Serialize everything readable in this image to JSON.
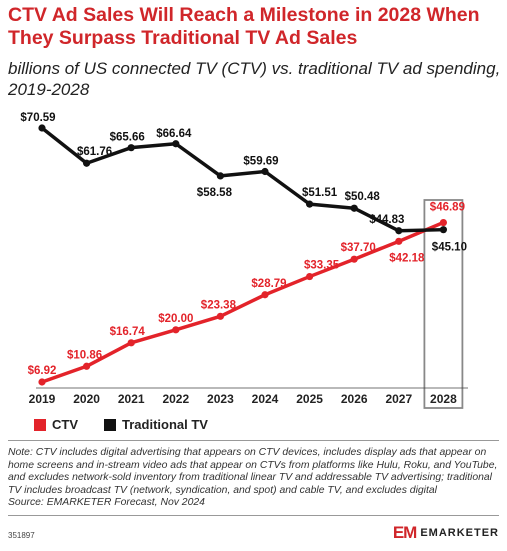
{
  "header": {
    "title": "CTV Ad Sales Will Reach a Milestone in 2028 When They Surpass Traditional TV Ad Sales",
    "subtitle": "billions of US connected TV (CTV) vs. traditional TV ad spending, 2019-2028"
  },
  "chart_data": {
    "type": "line",
    "categories": [
      "2019",
      "2020",
      "2021",
      "2022",
      "2023",
      "2024",
      "2025",
      "2026",
      "2027",
      "2028"
    ],
    "series": [
      {
        "name": "CTV",
        "color": "#e3232a",
        "values": [
          6.92,
          10.86,
          16.74,
          20.0,
          23.38,
          28.79,
          33.35,
          37.7,
          42.18,
          46.89
        ],
        "labels": [
          "$6.92",
          "$10.86",
          "$16.74",
          "$20.00",
          "$23.38",
          "$28.79",
          "$33.35",
          "$37.70",
          "$42.18",
          "$46.89"
        ]
      },
      {
        "name": "Traditional TV",
        "color": "#111111",
        "values": [
          70.59,
          61.76,
          65.66,
          66.64,
          58.58,
          59.69,
          51.51,
          50.48,
          44.83,
          45.1
        ],
        "labels": [
          "$70.59",
          "$61.76",
          "$65.66",
          "$66.64",
          "$58.58",
          "$59.69",
          "$51.51",
          "$50.48",
          "$44.83",
          "$45.10"
        ]
      }
    ],
    "highlighted_category": "2028",
    "grid": false,
    "legend_position": "bottom-left"
  },
  "legend": {
    "items": [
      {
        "label": "CTV",
        "color": "#e3232a"
      },
      {
        "label": "Traditional TV",
        "color": "#111111"
      }
    ]
  },
  "footer": {
    "note": "Note: CTV includes digital advertising that appears on CTV devices, includes display ads that appear on home screens and in-stream video ads that appear on CTVs from platforms like Hulu, Roku, and YouTube, and excludes network-sold inventory from traditional linear TV and addressable TV advertising; traditional TV includes broadcast TV (network, syndication, and spot) and cable TV, and excludes digital",
    "source": "Source: EMARKETER Forecast, Nov 2024",
    "chart_id": "351897",
    "brand_mark": "EM",
    "brand_name": "EMARKETER"
  }
}
